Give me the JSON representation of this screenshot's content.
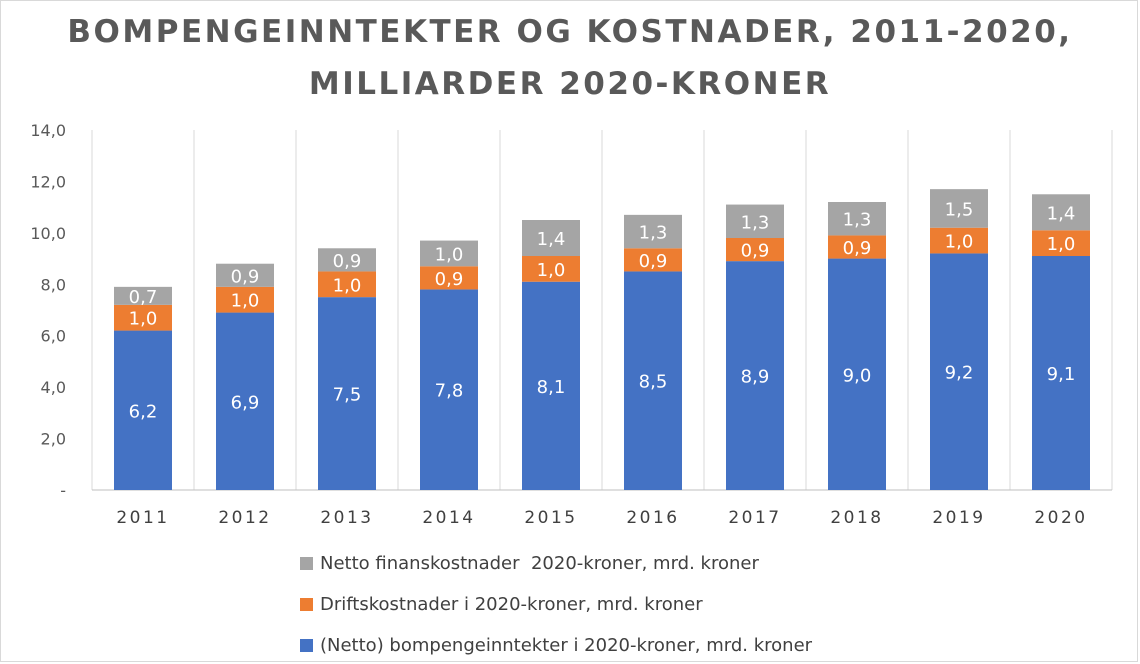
{
  "chart_data": {
    "type": "bar",
    "stacked": true,
    "title": "BOMPENGEINNTEKTER OG KOSTNADER, 2011-2020, MILLIARDER 2020-KRONER",
    "categories": [
      "2011",
      "2012",
      "2013",
      "2014",
      "2015",
      "2016",
      "2017",
      "2018",
      "2019",
      "2020"
    ],
    "series": [
      {
        "name": "(Netto) bompengeinntekter i 2020-kroner, mrd. kroner",
        "color": "#4472C4",
        "values": [
          6.2,
          6.9,
          7.5,
          7.8,
          8.1,
          8.5,
          8.9,
          9.0,
          9.2,
          9.1
        ],
        "labels": [
          "6,2",
          "6,9",
          "7,5",
          "7,8",
          "8,1",
          "8,5",
          "8,9",
          "9,0",
          "9,2",
          "9,1"
        ]
      },
      {
        "name": "Driftskostnader i 2020-kroner, mrd. kroner",
        "color": "#ED7D31",
        "values": [
          1.0,
          1.0,
          1.0,
          0.9,
          1.0,
          0.9,
          0.9,
          0.9,
          1.0,
          1.0
        ],
        "labels": [
          "1,0",
          "1,0",
          "1,0",
          "0,9",
          "1,0",
          "0,9",
          "0,9",
          "0,9",
          "1,0",
          "1,0"
        ]
      },
      {
        "name": "Netto finanskostnader  2020-kroner, mrd. kroner",
        "color": "#A5A5A5",
        "values": [
          0.7,
          0.9,
          0.9,
          1.0,
          1.4,
          1.3,
          1.3,
          1.3,
          1.5,
          1.4
        ],
        "labels": [
          "0,7",
          "0,9",
          "0,9",
          "1,0",
          "1,4",
          "1,3",
          "1,3",
          "1,3",
          "1,5",
          "1,4"
        ]
      }
    ],
    "ylim": [
      0,
      14
    ],
    "yticks": [
      0,
      2,
      4,
      6,
      8,
      10,
      12,
      14
    ],
    "ytick_labels": [
      "-",
      "2,0",
      "4,0",
      "6,0",
      "8,0",
      "10,0",
      "12,0",
      "14,0"
    ],
    "xlabel": "",
    "ylabel": "",
    "grid": "vertical",
    "legend_position": "bottom"
  },
  "legend": {
    "items": [
      {
        "label": "Netto finanskostnader  2020-kroner, mrd. kroner",
        "color": "#A5A5A5"
      },
      {
        "label": "Driftskostnader i 2020-kroner, mrd. kroner",
        "color": "#ED7D31"
      },
      {
        "label": "(Netto) bompengeinntekter i 2020-kroner, mrd. kroner",
        "color": "#4472C4"
      }
    ]
  }
}
